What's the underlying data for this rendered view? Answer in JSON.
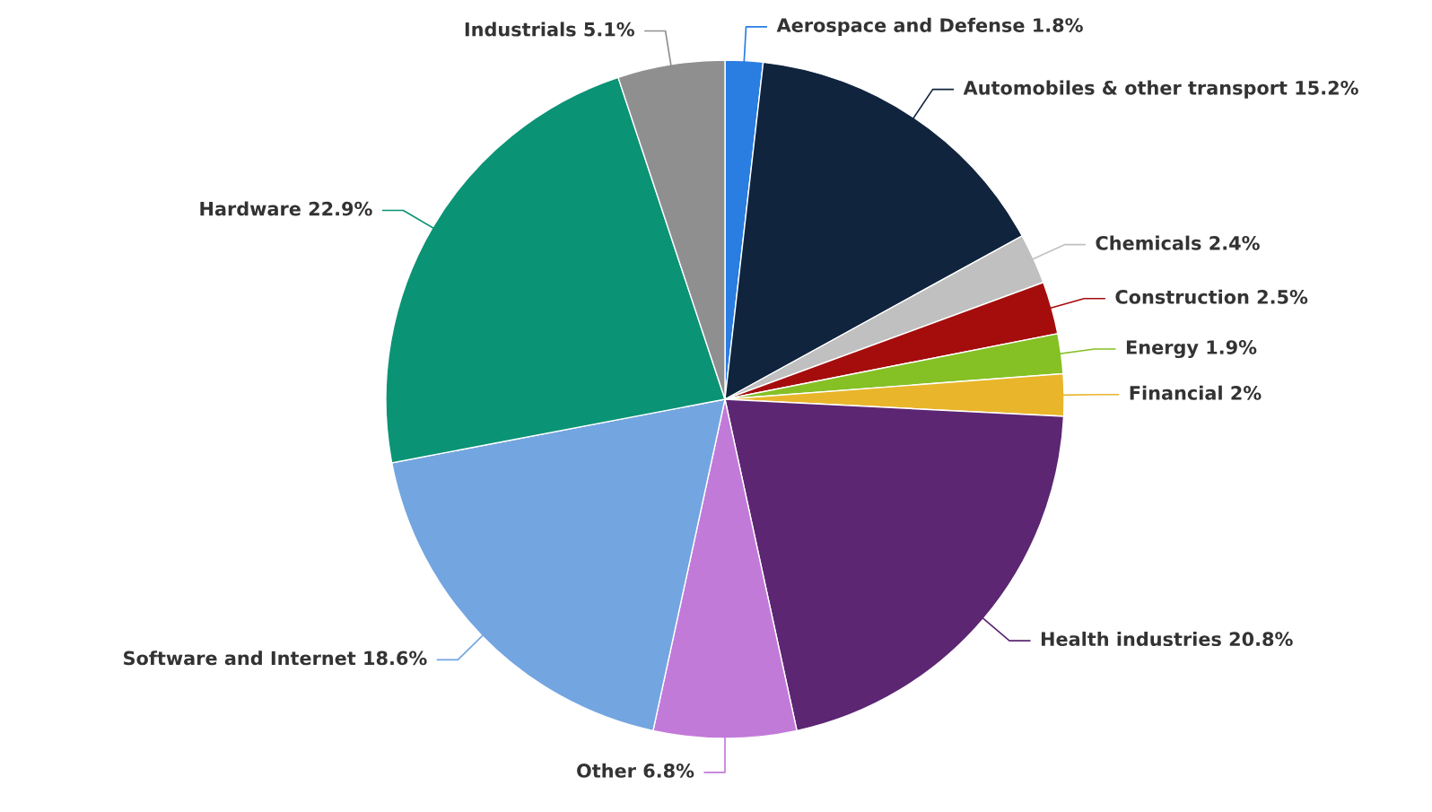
{
  "chart_data": {
    "type": "pie",
    "categories": [
      "Aerospace and Defense",
      "Automobiles & other transport",
      "Chemicals",
      "Construction",
      "Energy",
      "Financial",
      "Health industries",
      "Other",
      "Software and Internet",
      "Hardware",
      "Industrials"
    ],
    "values": [
      1.8,
      15.2,
      2.4,
      2.5,
      1.9,
      2,
      20.8,
      6.8,
      18.6,
      22.9,
      5.1
    ],
    "value_labels": [
      "1.8%",
      "15.2%",
      "2.4%",
      "2.5%",
      "1.9%",
      "2%",
      "20.8%",
      "6.8%",
      "18.6%",
      "22.9%",
      "5.1%"
    ],
    "colors": [
      "#2a7de1",
      "#10243e",
      "#c0c0c0",
      "#a50d0d",
      "#85c025",
      "#e9b52a",
      "#5c2673",
      "#c27ad9",
      "#73a5e0",
      "#0b9375",
      "#8f8f8f"
    ],
    "legend": false
  }
}
